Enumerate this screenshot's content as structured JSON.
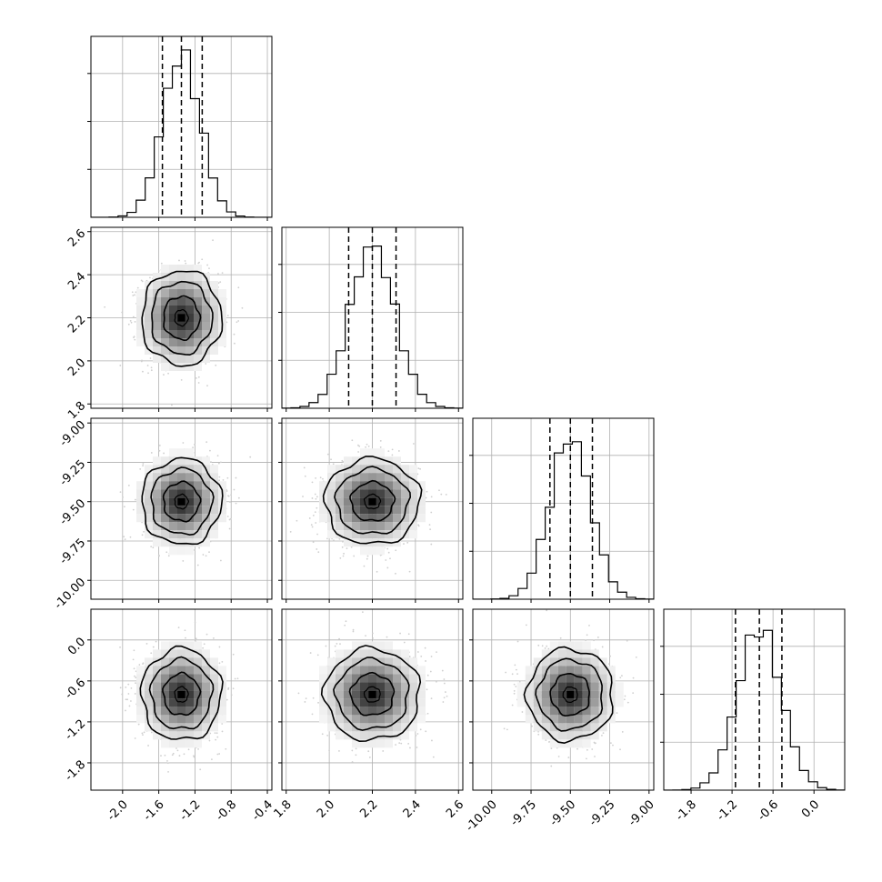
{
  "chart_data": {
    "type": "corner",
    "grid": true,
    "quantile_lines": [
      0.16,
      0.5,
      0.84
    ],
    "contour_levels": [
      0.393,
      0.865,
      0.989
    ],
    "parameters": [
      {
        "mean": -1.35,
        "sd": 0.21,
        "range": [
          -2.35,
          -0.35
        ],
        "ticks": [
          "-2.0",
          "-1.6",
          "-1.2",
          "-0.8",
          "-0.4"
        ],
        "tick_values": [
          -2.0,
          -1.6,
          -1.2,
          -0.8,
          -0.4
        ],
        "quantiles": [
          -1.56,
          -1.35,
          -1.12
        ]
      },
      {
        "mean": 2.2,
        "sd": 0.105,
        "range": [
          1.78,
          2.62
        ],
        "ticks": [
          "1.8",
          "2.0",
          "2.2",
          "2.4",
          "2.6"
        ],
        "tick_values": [
          1.8,
          2.0,
          2.2,
          2.4,
          2.6
        ],
        "quantiles": [
          2.09,
          2.2,
          2.31
        ]
      },
      {
        "mean": -9.5,
        "sd": 0.13,
        "range": [
          -10.12,
          -8.97
        ],
        "ticks": [
          "-10.00",
          "-9.75",
          "-9.50",
          "-9.25",
          "-9.00"
        ],
        "tick_values": [
          -10.0,
          -9.75,
          -9.5,
          -9.25,
          -9.0
        ],
        "quantiles": [
          -9.63,
          -9.5,
          -9.36
        ]
      },
      {
        "mean": -0.8,
        "sd": 0.32,
        "range": [
          -2.2,
          0.45
        ],
        "ticks": [
          "-1.8",
          "-1.2",
          "-0.6",
          "0.0"
        ],
        "tick_values": [
          -1.8,
          -1.2,
          -0.6,
          0.0
        ],
        "quantiles": [
          -1.15,
          -0.8,
          -0.47
        ]
      }
    ],
    "histogram_peak_fraction": 0.9
  }
}
